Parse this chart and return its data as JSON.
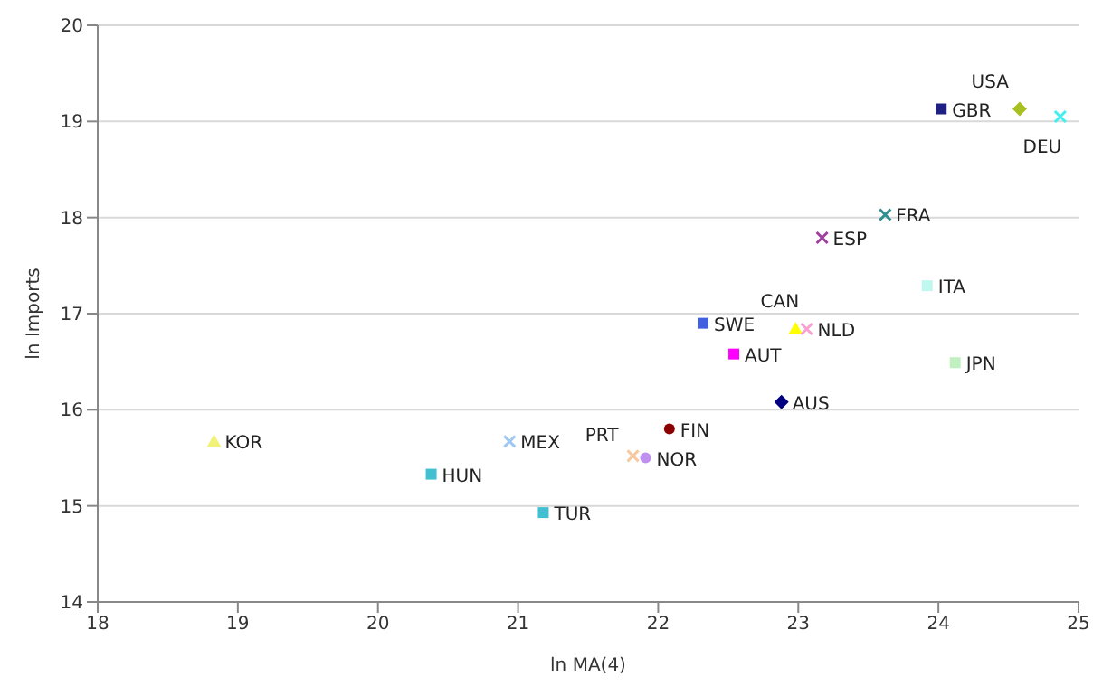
{
  "chart_data": {
    "type": "scatter",
    "xlabel": "ln MA(4)",
    "ylabel": "ln Imports",
    "xlim": [
      18,
      25
    ],
    "xticks": [
      18,
      19,
      20,
      21,
      22,
      23,
      24,
      25
    ],
    "ylim": [
      14,
      20
    ],
    "yticks": [
      14,
      15,
      16,
      17,
      18,
      19,
      20
    ],
    "grid": "y",
    "series": [
      {
        "name": "KOR",
        "color": "#f2f27a",
        "marker": "triangle",
        "x": [
          18.83
        ],
        "values": [
          15.67
        ]
      },
      {
        "name": "HUN",
        "color": "#40c0d0",
        "marker": "square",
        "x": [
          20.38
        ],
        "values": [
          15.33
        ]
      },
      {
        "name": "MEX",
        "color": "#a0c8f0",
        "marker": "cross",
        "x": [
          20.94
        ],
        "values": [
          15.67
        ]
      },
      {
        "name": "TUR",
        "color": "#40c0d0",
        "marker": "square",
        "x": [
          21.18
        ],
        "values": [
          14.93
        ]
      },
      {
        "name": "PRT",
        "color": "#f8c8a0",
        "marker": "cross",
        "x": [
          21.82
        ],
        "values": [
          15.52
        ]
      },
      {
        "name": "NOR",
        "color": "#c090f0",
        "marker": "circle",
        "x": [
          21.91
        ],
        "values": [
          15.5
        ]
      },
      {
        "name": "FIN",
        "color": "#8b0000",
        "marker": "circle",
        "x": [
          22.08
        ],
        "values": [
          15.8
        ]
      },
      {
        "name": "AUS",
        "color": "#000080",
        "marker": "diamond",
        "x": [
          22.88
        ],
        "values": [
          16.08
        ]
      },
      {
        "name": "AUT",
        "color": "#ff00ff",
        "marker": "square",
        "x": [
          22.54
        ],
        "values": [
          16.58
        ]
      },
      {
        "name": "SWE",
        "color": "#4060e0",
        "marker": "square",
        "x": [
          22.32
        ],
        "values": [
          16.9
        ]
      },
      {
        "name": "CAN",
        "color": "#ffff00",
        "marker": "triangle",
        "x": [
          22.98
        ],
        "values": [
          16.84
        ]
      },
      {
        "name": "NLD",
        "color": "#f8a0d0",
        "marker": "cross",
        "x": [
          23.06
        ],
        "values": [
          16.84
        ]
      },
      {
        "name": "ESP",
        "color": "#a040a0",
        "marker": "cross",
        "x": [
          23.17
        ],
        "values": [
          17.79
        ]
      },
      {
        "name": "FRA",
        "color": "#309090",
        "marker": "cross",
        "x": [
          23.62
        ],
        "values": [
          18.03
        ]
      },
      {
        "name": "ITA",
        "color": "#c0f8f0",
        "marker": "square",
        "x": [
          23.92
        ],
        "values": [
          17.29
        ]
      },
      {
        "name": "JPN",
        "color": "#c0f0c0",
        "marker": "square",
        "x": [
          24.12
        ],
        "values": [
          16.49
        ]
      },
      {
        "name": "GBR",
        "color": "#202080",
        "marker": "square",
        "x": [
          24.02
        ],
        "values": [
          19.13
        ]
      },
      {
        "name": "USA",
        "color": "#a8c020",
        "marker": "diamond",
        "x": [
          24.58
        ],
        "values": [
          19.13
        ]
      },
      {
        "name": "DEU",
        "color": "#40f0f0",
        "marker": "cross",
        "x": [
          24.87
        ],
        "values": [
          19.05
        ]
      }
    ]
  }
}
